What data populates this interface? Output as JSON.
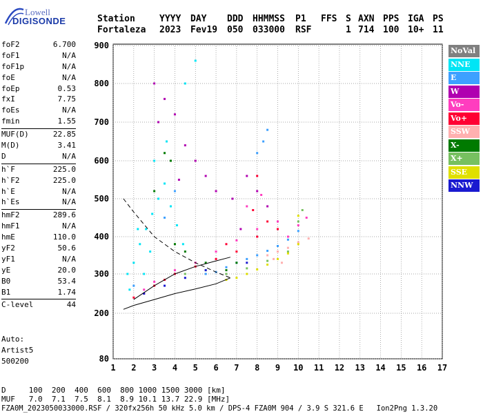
{
  "logo": {
    "brand_top": "Lowell",
    "brand_bottom": "DIGISONDE"
  },
  "header": {
    "labels": [
      "Station",
      "YYYY",
      "DAY",
      "DDD",
      "HHMMSS",
      "P1",
      "FFS",
      "S",
      "AXN",
      "PPS",
      "IGA",
      "PS"
    ],
    "values": [
      "Fortaleza",
      "2023",
      "Fev19",
      "050",
      "033000",
      "RSF",
      "",
      "1",
      "714",
      "100",
      "10+",
      "11"
    ]
  },
  "params": {
    "group1": [
      {
        "label": "foF2",
        "value": "6.700"
      },
      {
        "label": "foF1",
        "value": "N/A"
      },
      {
        "label": "foF1p",
        "value": "N/A"
      },
      {
        "label": "foE",
        "value": "N/A"
      },
      {
        "label": "foEp",
        "value": "0.53"
      },
      {
        "label": "fxI",
        "value": "7.75"
      },
      {
        "label": "foEs",
        "value": "N/A"
      },
      {
        "label": "fmin",
        "value": "1.55"
      }
    ],
    "group2": [
      {
        "label": "MUF(D)",
        "value": "22.85"
      },
      {
        "label": "M(D)",
        "value": "3.41"
      },
      {
        "label": "D",
        "value": "N/A"
      }
    ],
    "group3": [
      {
        "label": "h`F",
        "value": "225.0"
      },
      {
        "label": "h`F2",
        "value": "225.0"
      },
      {
        "label": "h`E",
        "value": "N/A"
      },
      {
        "label": "h`Es",
        "value": "N/A"
      }
    ],
    "group4": [
      {
        "label": "hmF2",
        "value": "289.6"
      },
      {
        "label": "hmF1",
        "value": "N/A"
      },
      {
        "label": "hmE",
        "value": "110.0"
      },
      {
        "label": "yF2",
        "value": "50.6"
      },
      {
        "label": "yF1",
        "value": "N/A"
      },
      {
        "label": "yE",
        "value": "20.0"
      },
      {
        "label": "B0",
        "value": "53.4"
      },
      {
        "label": "B1",
        "value": "1.74"
      }
    ],
    "group5": [
      {
        "label": "C-level",
        "value": "44"
      }
    ]
  },
  "autoscaling": {
    "line1": "Auto:",
    "line2": "Artist5",
    "line3": "500200"
  },
  "legend": [
    {
      "label": "NoVal",
      "color": "#808080",
      "text_color": "#ffffff"
    },
    {
      "label": "NNE",
      "color": "#00e5f5",
      "text_color": "#ffffff"
    },
    {
      "label": "E",
      "color": "#3da0ff",
      "text_color": "#ffffff"
    },
    {
      "label": "W",
      "color": "#b000b0",
      "text_color": "#ffffff"
    },
    {
      "label": "Vo-",
      "color": "#ff3dbf",
      "text_color": "#ffffff"
    },
    {
      "label": "Vo+",
      "color": "#ff0033",
      "text_color": "#ffffff"
    },
    {
      "label": "SSW",
      "color": "#ffb0b0",
      "text_color": "#ffffff"
    },
    {
      "label": "X-",
      "color": "#007a00",
      "text_color": "#ffffff"
    },
    {
      "label": "X+",
      "color": "#77c060",
      "text_color": "#ffffff"
    },
    {
      "label": "SSE",
      "color": "#e0e000",
      "text_color": "#ffffff"
    },
    {
      "label": "NNW",
      "color": "#1a1ad0",
      "text_color": "#ffffff"
    }
  ],
  "chart_data": {
    "type": "scatter",
    "title": "",
    "xlabel": "",
    "ylabel": "",
    "xlim": [
      1,
      17
    ],
    "ylim": [
      80,
      900
    ],
    "xticks": [
      1,
      2,
      3,
      4,
      5,
      6,
      7,
      8,
      9,
      10,
      11,
      12,
      13,
      14,
      15,
      16,
      17
    ],
    "yticks": [
      80,
      200,
      300,
      400,
      500,
      600,
      700,
      800,
      900
    ],
    "grid": true,
    "series": [
      {
        "name": "NNE",
        "color": "#00e5f5",
        "points": [
          [
            1.7,
            300
          ],
          [
            2.0,
            330
          ],
          [
            2.3,
            380
          ],
          [
            2.6,
            420
          ],
          [
            2.9,
            460
          ],
          [
            3.2,
            500
          ],
          [
            3.5,
            540
          ],
          [
            3.8,
            480
          ],
          [
            4.1,
            430
          ],
          [
            4.4,
            380
          ],
          [
            2.2,
            420
          ],
          [
            2.8,
            360
          ],
          [
            3.0,
            600
          ],
          [
            3.6,
            650
          ],
          [
            4.5,
            800
          ],
          [
            5.0,
            860
          ],
          [
            1.8,
            260
          ],
          [
            2.5,
            300
          ]
        ]
      },
      {
        "name": "E",
        "color": "#3da0ff",
        "points": [
          [
            5.5,
            300
          ],
          [
            6.0,
            305
          ],
          [
            6.5,
            318
          ],
          [
            7.0,
            330
          ],
          [
            7.5,
            340
          ],
          [
            8.0,
            350
          ],
          [
            8.5,
            362
          ],
          [
            9.0,
            375
          ],
          [
            9.5,
            392
          ],
          [
            10.0,
            415
          ],
          [
            8.0,
            620
          ],
          [
            8.3,
            650
          ],
          [
            8.5,
            680
          ],
          [
            3.5,
            450
          ],
          [
            4.0,
            520
          ],
          [
            2.0,
            270
          ]
        ]
      },
      {
        "name": "W",
        "color": "#b000b0",
        "points": [
          [
            3.0,
            800
          ],
          [
            3.5,
            760
          ],
          [
            4.0,
            720
          ],
          [
            4.5,
            640
          ],
          [
            5.0,
            600
          ],
          [
            5.5,
            560
          ],
          [
            6.0,
            520
          ],
          [
            7.5,
            560
          ],
          [
            8.0,
            520
          ],
          [
            8.5,
            480
          ],
          [
            3.2,
            700
          ],
          [
            6.8,
            500
          ],
          [
            7.2,
            420
          ],
          [
            4.2,
            550
          ]
        ]
      },
      {
        "name": "Vo-",
        "color": "#ff3dbf",
        "points": [
          [
            2.5,
            260
          ],
          [
            3.0,
            280
          ],
          [
            4.0,
            310
          ],
          [
            5.0,
            330
          ],
          [
            6.0,
            360
          ],
          [
            7.0,
            390
          ],
          [
            8.0,
            420
          ],
          [
            9.0,
            440
          ],
          [
            10.0,
            430
          ],
          [
            10.4,
            450
          ],
          [
            7.5,
            480
          ],
          [
            8.2,
            510
          ],
          [
            9.5,
            400
          ]
        ]
      },
      {
        "name": "Vo+",
        "color": "#ff0033",
        "points": [
          [
            2.0,
            240
          ],
          [
            2.5,
            250
          ],
          [
            3.0,
            270
          ],
          [
            3.5,
            285
          ],
          [
            4.0,
            300
          ],
          [
            5.0,
            320
          ],
          [
            6.0,
            340
          ],
          [
            7.0,
            360
          ],
          [
            8.0,
            400
          ],
          [
            8.5,
            440
          ],
          [
            9.0,
            420
          ],
          [
            7.8,
            470
          ],
          [
            6.5,
            380
          ],
          [
            8.0,
            560
          ]
        ]
      },
      {
        "name": "SSW",
        "color": "#ffb0b0",
        "points": [
          [
            8.5,
            350
          ],
          [
            9.0,
            360
          ],
          [
            9.5,
            370
          ],
          [
            10.0,
            385
          ],
          [
            10.5,
            395
          ],
          [
            9.2,
            330
          ],
          [
            8.8,
            340
          ]
        ]
      },
      {
        "name": "X-",
        "color": "#007a00",
        "points": [
          [
            3.5,
            620
          ],
          [
            3.8,
            600
          ],
          [
            4.0,
            380
          ],
          [
            4.5,
            360
          ],
          [
            5.5,
            330
          ],
          [
            6.5,
            310
          ],
          [
            7.0,
            330
          ],
          [
            3.0,
            520
          ]
        ]
      },
      {
        "name": "X+",
        "color": "#77c060",
        "points": [
          [
            4.5,
            300
          ],
          [
            5.5,
            310
          ],
          [
            6.5,
            300
          ],
          [
            7.5,
            315
          ],
          [
            8.5,
            335
          ],
          [
            9.5,
            360
          ],
          [
            10.0,
            440
          ],
          [
            10.2,
            470
          ]
        ]
      },
      {
        "name": "SSE",
        "color": "#e0e000",
        "points": [
          [
            6.5,
            285
          ],
          [
            7.0,
            290
          ],
          [
            7.5,
            300
          ],
          [
            8.0,
            312
          ],
          [
            8.5,
            325
          ],
          [
            9.0,
            340
          ],
          [
            9.5,
            355
          ],
          [
            10.0,
            380
          ],
          [
            10.0,
            455
          ]
        ]
      },
      {
        "name": "NNW",
        "color": "#1a1ad0",
        "points": [
          [
            2.5,
            250
          ],
          [
            3.5,
            270
          ],
          [
            4.5,
            290
          ],
          [
            5.5,
            310
          ],
          [
            7.5,
            330
          ]
        ]
      }
    ],
    "profile_lines": [
      {
        "style": "solid",
        "points": [
          [
            1.5,
            210
          ],
          [
            2.0,
            220
          ],
          [
            3.0,
            235
          ],
          [
            4.0,
            250
          ],
          [
            5.0,
            262
          ],
          [
            6.0,
            275
          ],
          [
            6.7,
            290
          ]
        ]
      },
      {
        "style": "solid",
        "points": [
          [
            2.0,
            235
          ],
          [
            3.0,
            270
          ],
          [
            4.0,
            300
          ],
          [
            5.0,
            320
          ],
          [
            6.0,
            335
          ],
          [
            6.7,
            345
          ]
        ]
      },
      {
        "style": "dashed",
        "points": [
          [
            1.5,
            500
          ],
          [
            2.0,
            465
          ],
          [
            3.0,
            400
          ],
          [
            4.0,
            360
          ],
          [
            5.0,
            330
          ],
          [
            6.0,
            305
          ],
          [
            6.7,
            290
          ]
        ]
      }
    ]
  },
  "footer": {
    "line1": "D     100  200  400  600  800 1000 1500 3000 [km]",
    "line2": "MUF   7.0  7.1  7.5  8.1  8.9 10.1 13.7 22.9 [MHz]",
    "line3": "FZA0M_2023050033000.RSF / 320fx256h 50 kHz 5.0 km / DPS-4 FZA0M 904 / 3.9 S 321.6 E   Ion2Png 1.3.20"
  }
}
